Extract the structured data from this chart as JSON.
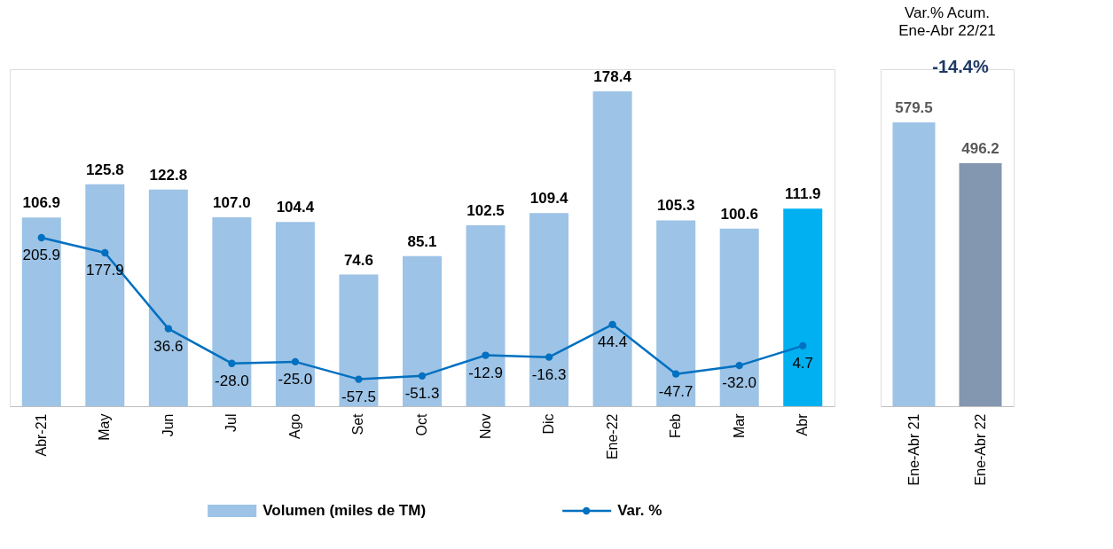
{
  "chart_data": [
    {
      "type": "bar",
      "categories": [
        "Abr-21",
        "May",
        "Jun",
        "Jul",
        "Ago",
        "Set",
        "Oct",
        "Nov",
        "Dic",
        "Ene-22",
        "Feb",
        "Mar",
        "Abr"
      ],
      "series": [
        {
          "name": "Volumen (miles de TM)",
          "color": "#9dc3e6",
          "colors": [
            "#9dc3e6",
            "#9dc3e6",
            "#9dc3e6",
            "#9dc3e6",
            "#9dc3e6",
            "#9dc3e6",
            "#9dc3e6",
            "#9dc3e6",
            "#9dc3e6",
            "#9dc3e6",
            "#9dc3e6",
            "#9dc3e6",
            "#00b0f0"
          ],
          "values": [
            106.9,
            125.8,
            122.8,
            107.0,
            104.4,
            74.6,
            85.1,
            102.5,
            109.4,
            178.4,
            105.3,
            100.6,
            111.9
          ],
          "value_labels": [
            "106.9",
            "125.8",
            "122.8",
            "107.0",
            "104.4",
            "74.6",
            "85.1",
            "102.5",
            "109.4",
            "178.4",
            "105.3",
            "100.6",
            "111.9"
          ]
        },
        {
          "name": "Var. %",
          "type": "line",
          "axis": "y2",
          "color": "#0070c0",
          "values": [
            205.9,
            177.9,
            36.6,
            -28.0,
            -25.0,
            -57.5,
            -51.3,
            -12.9,
            -16.3,
            44.4,
            -47.7,
            -32.0,
            4.7
          ],
          "value_labels": [
            "205.9",
            "177.9",
            "36.6",
            "-28.0",
            "-25.0",
            "-57.5",
            "-51.3",
            "-12.9",
            "-16.3",
            "44.4",
            "-47.7",
            "-32.0",
            "4.7"
          ]
        }
      ],
      "marker": "circle",
      "line_style": "solid",
      "legend": "bottom"
    },
    {
      "type": "bar",
      "title": "Var.% Acum.",
      "subtitle": "Ene-Abr 22/21",
      "categories": [
        "Ene-Abr 21",
        "Ene-Abr 22"
      ],
      "values": [
        579.5,
        496.2
      ],
      "colors": [
        "#9dc3e6",
        "#8497b0"
      ],
      "data_labels": true,
      "annotations": [
        "-14.4%"
      ]
    }
  ]
}
